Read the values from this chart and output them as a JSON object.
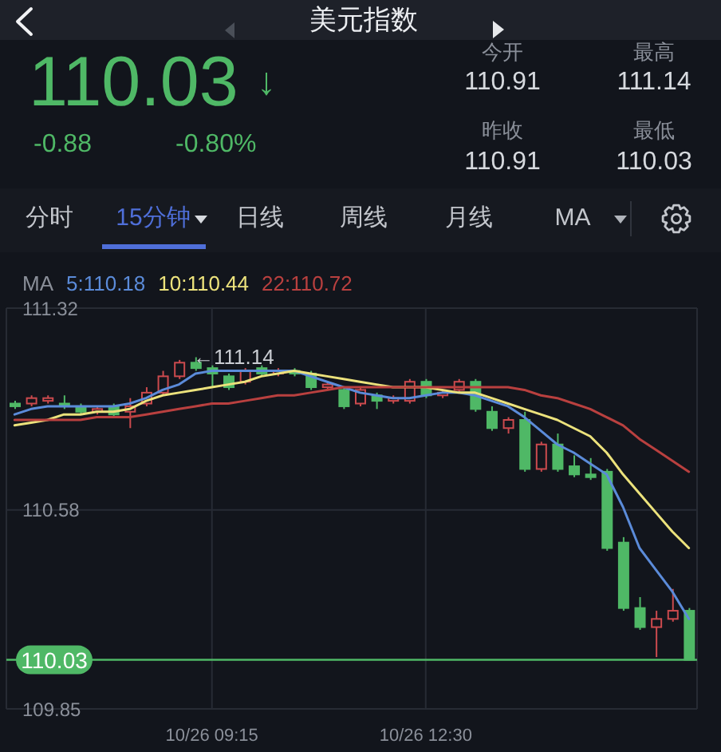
{
  "chart_data": [
    {
      "type": "other",
      "title": "美元指数",
      "annotations": [
        "110.03",
        "↓",
        "-0.88",
        "-0.80%",
        "今开",
        "110.91",
        "最高",
        "111.14",
        "昨收",
        "110.91",
        "最低",
        "110.03",
        "分时",
        "15分钟",
        "日线",
        "周线",
        "月线",
        "MA"
      ]
    },
    {
      "type": "candlestick",
      "categories": [
        null,
        null,
        null,
        null,
        null,
        null,
        null,
        null,
        null,
        null,
        null,
        null,
        "10/26 09:15",
        null,
        null,
        null,
        null,
        null,
        null,
        null,
        null,
        null,
        null,
        null,
        null,
        "10/26 12:30",
        null,
        null,
        null,
        null,
        null,
        null,
        null,
        null,
        null,
        null,
        null,
        null,
        null,
        null,
        null,
        null
      ],
      "ohlc": [
        [
          110.97,
          110.98,
          110.95,
          110.96
        ],
        [
          110.97,
          111.0,
          110.96,
          110.99
        ],
        [
          110.98,
          111.0,
          110.97,
          110.99
        ],
        [
          110.97,
          111.0,
          110.95,
          110.96
        ],
        [
          110.96,
          110.97,
          110.93,
          110.94
        ],
        [
          110.94,
          110.96,
          110.93,
          110.95
        ],
        [
          110.96,
          110.97,
          110.92,
          110.93
        ],
        [
          110.94,
          110.99,
          110.88,
          110.96
        ],
        [
          110.97,
          111.03,
          110.96,
          111.01
        ],
        [
          111.01,
          111.09,
          111.0,
          111.07
        ],
        [
          111.07,
          111.13,
          111.06,
          111.12
        ],
        [
          111.12,
          111.14,
          111.09,
          111.1
        ],
        [
          111.1,
          111.11,
          111.03,
          111.08
        ],
        [
          111.07,
          111.08,
          111.02,
          111.03
        ],
        [
          111.05,
          111.1,
          111.04,
          111.09
        ],
        [
          111.1,
          111.11,
          111.07,
          111.08
        ],
        [
          111.08,
          111.1,
          111.07,
          111.09
        ],
        [
          111.09,
          111.1,
          111.07,
          111.08
        ],
        [
          111.08,
          111.09,
          111.02,
          111.03
        ],
        [
          111.03,
          111.05,
          111.02,
          111.04
        ],
        [
          111.02,
          111.03,
          110.95,
          110.96
        ],
        [
          110.97,
          111.03,
          110.96,
          111.02
        ],
        [
          111.0,
          111.01,
          110.95,
          110.98
        ],
        [
          110.98,
          111.0,
          110.97,
          110.99
        ],
        [
          110.98,
          111.06,
          110.97,
          111.05
        ],
        [
          111.05,
          111.06,
          110.99,
          111.0
        ],
        [
          111.0,
          111.02,
          110.99,
          111.01
        ],
        [
          111.02,
          111.06,
          111.01,
          111.05
        ],
        [
          111.05,
          111.06,
          110.94,
          110.95
        ],
        [
          110.94,
          110.96,
          110.87,
          110.88
        ],
        [
          110.88,
          110.92,
          110.86,
          110.91
        ],
        [
          110.91,
          110.94,
          110.72,
          110.73
        ],
        [
          110.73,
          110.83,
          110.72,
          110.82
        ],
        [
          110.82,
          110.86,
          110.72,
          110.73
        ],
        [
          110.74,
          110.78,
          110.7,
          110.71
        ],
        [
          110.71,
          110.77,
          110.69,
          110.7
        ],
        [
          110.72,
          110.73,
          110.43,
          110.44
        ],
        [
          110.46,
          110.48,
          110.21,
          110.22
        ],
        [
          110.22,
          110.26,
          110.14,
          110.15
        ],
        [
          110.15,
          110.21,
          110.04,
          110.18
        ],
        [
          110.18,
          110.29,
          110.17,
          110.21
        ],
        [
          110.21,
          110.22,
          110.03,
          110.03
        ]
      ],
      "colors": [
        "#4fb866",
        "#cc4a4e",
        "#cc4a4e",
        "#4fb866",
        "#4fb866",
        "#cc4a4e",
        "#4fb866",
        "#cc4a4e",
        "#cc4a4e",
        "#cc4a4e",
        "#cc4a4e",
        "#4fb866",
        "#4fb866",
        "#4fb866",
        "#cc4a4e",
        "#4fb866",
        "#cc4a4e",
        "#4fb866",
        "#4fb866",
        "#cc4a4e",
        "#4fb866",
        "#cc4a4e",
        "#4fb866",
        "#cc4a4e",
        "#cc4a4e",
        "#4fb866",
        "#cc4a4e",
        "#cc4a4e",
        "#4fb866",
        "#4fb866",
        "#cc4a4e",
        "#4fb866",
        "#cc4a4e",
        "#4fb866",
        "#4fb866",
        "#4fb866",
        "#4fb866",
        "#4fb866",
        "#4fb866",
        "#cc4a4e",
        "#cc4a4e",
        "#4fb866"
      ],
      "series": [
        {
          "name": "5:110.18",
          "type": "line",
          "color": "#5b8bd9",
          "values": [
            110.93,
            110.95,
            110.96,
            110.96,
            110.96,
            110.96,
            110.96,
            110.97,
            110.99,
            111.02,
            111.04,
            111.08,
            111.09,
            111.09,
            111.09,
            111.09,
            111.09,
            111.09,
            111.07,
            111.05,
            111.03,
            111.01,
            111.0,
            110.99,
            110.99,
            111.0,
            111.01,
            111.01,
            111.0,
            110.98,
            110.96,
            110.92,
            110.87,
            110.82,
            110.79,
            110.75,
            110.71,
            110.59,
            110.44,
            110.36,
            110.28,
            110.18
          ]
        },
        {
          "name": "10:110.44",
          "type": "line",
          "color": "#ece27c",
          "values": [
            110.89,
            110.9,
            110.91,
            110.93,
            110.93,
            110.94,
            110.94,
            110.95,
            110.98,
            111.0,
            111.01,
            111.02,
            111.03,
            111.04,
            111.05,
            111.07,
            111.08,
            111.09,
            111.08,
            111.07,
            111.06,
            111.05,
            111.04,
            111.03,
            111.03,
            111.03,
            111.02,
            111.01,
            111.01,
            110.99,
            110.97,
            110.95,
            110.93,
            110.91,
            110.88,
            110.85,
            110.79,
            110.71,
            110.64,
            110.57,
            110.5,
            110.44
          ]
        },
        {
          "name": "22:110.72",
          "type": "line",
          "color": "#b9403f",
          "values": [
            110.91,
            110.91,
            110.91,
            110.91,
            110.91,
            110.92,
            110.92,
            110.92,
            110.93,
            110.94,
            110.95,
            110.96,
            110.97,
            110.97,
            110.98,
            110.99,
            111.0,
            111.0,
            111.01,
            111.02,
            111.03,
            111.03,
            111.03,
            111.03,
            111.03,
            111.03,
            111.03,
            111.03,
            111.03,
            111.03,
            111.03,
            111.02,
            111.0,
            110.99,
            110.97,
            110.95,
            110.92,
            110.89,
            110.84,
            110.8,
            110.76,
            110.72
          ]
        }
      ],
      "ylim": [
        109.85,
        111.32
      ],
      "yticks": [
        111.32,
        110.58,
        109.85
      ],
      "grid": true,
      "legend": "top left",
      "legend_title": "MA",
      "ref_lines": [
        {
          "axis": "y",
          "value": 110.03,
          "label": "110.03",
          "color": "#4fb866"
        }
      ],
      "annotations": [
        "←111.14"
      ]
    }
  ]
}
